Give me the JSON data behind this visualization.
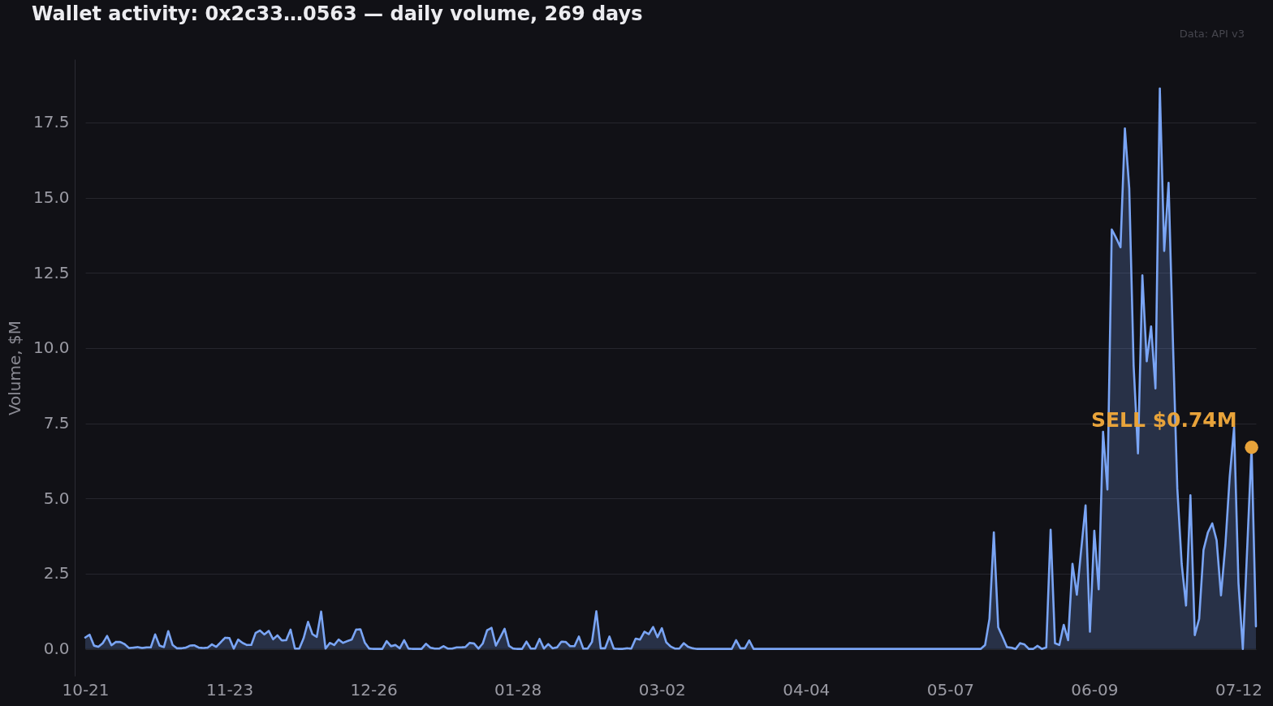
{
  "chart_data": {
    "type": "area",
    "title": "Wallet activity: 0x2c33…0563 — daily volume, 269 days",
    "ylabel": "Volume, $M",
    "annotations": [
      "Data: API v3",
      "SELL $0.74M"
    ],
    "categories": [
      "10-21",
      null,
      null,
      null,
      null,
      null,
      null,
      null,
      null,
      null,
      null,
      null,
      null,
      null,
      null,
      null,
      null,
      null,
      null,
      null,
      null,
      null,
      null,
      null,
      null,
      null,
      null,
      null,
      null,
      null,
      null,
      null,
      null,
      "11-23",
      null,
      null,
      null,
      null,
      null,
      null,
      null,
      null,
      null,
      null,
      null,
      null,
      null,
      null,
      null,
      null,
      null,
      null,
      null,
      null,
      null,
      null,
      null,
      null,
      null,
      null,
      null,
      null,
      null,
      null,
      null,
      null,
      "12-26",
      null,
      null,
      null,
      null,
      null,
      null,
      null,
      null,
      null,
      null,
      null,
      null,
      null,
      null,
      null,
      null,
      null,
      null,
      null,
      null,
      null,
      null,
      null,
      null,
      null,
      null,
      null,
      null,
      null,
      null,
      null,
      null,
      "01-28",
      null,
      null,
      null,
      null,
      null,
      null,
      null,
      null,
      null,
      null,
      null,
      null,
      null,
      null,
      null,
      null,
      null,
      null,
      null,
      null,
      null,
      null,
      null,
      null,
      null,
      null,
      null,
      null,
      null,
      null,
      null,
      null,
      "03-02",
      null,
      null,
      null,
      null,
      null,
      null,
      null,
      null,
      null,
      null,
      null,
      null,
      null,
      null,
      null,
      null,
      null,
      null,
      null,
      null,
      null,
      null,
      null,
      null,
      null,
      null,
      null,
      null,
      null,
      null,
      null,
      null,
      "04-04",
      null,
      null,
      null,
      null,
      null,
      null,
      null,
      null,
      null,
      null,
      null,
      null,
      null,
      null,
      null,
      null,
      null,
      null,
      null,
      null,
      null,
      null,
      null,
      null,
      null,
      null,
      null,
      null,
      null,
      null,
      null,
      null,
      "05-07",
      null,
      null,
      null,
      null,
      null,
      null,
      null,
      null,
      null,
      null,
      null,
      null,
      null,
      null,
      null,
      null,
      null,
      null,
      null,
      null,
      null,
      null,
      null,
      null,
      null,
      null,
      null,
      null,
      null,
      null,
      null,
      null,
      "06-09",
      null,
      null,
      null,
      null,
      null,
      null,
      null,
      null,
      null,
      null,
      null,
      null,
      null,
      null,
      null,
      null,
      null,
      null,
      null,
      null,
      null,
      null,
      null,
      null,
      null,
      null,
      null,
      null,
      null,
      null,
      null,
      null,
      "07-12",
      null,
      null,
      null,
      null
    ],
    "ylim": [
      -0.9,
      19.6
    ],
    "yticks": [
      {
        "value": 0,
        "label": "0.0"
      },
      2.5,
      {
        "value": 5,
        "label": "5.0"
      },
      7.5,
      {
        "value": 10,
        "label": "10.0"
      },
      12.5,
      {
        "value": 15,
        "label": "15.0"
      },
      17.5
    ],
    "grid": "y",
    "series": [
      {
        "color": "#7aa5f5",
        "values": [
          0.38,
          0.47,
          0.11,
          0.07,
          0.19,
          0.43,
          0.12,
          0.23,
          0.23,
          0.16,
          0.03,
          0.04,
          0.06,
          0.03,
          0.05,
          0.05,
          0.48,
          0.11,
          0.06,
          0.59,
          0.13,
          0.02,
          0.02,
          0.04,
          0.11,
          0.12,
          0.04,
          0.03,
          0.04,
          0.15,
          0.07,
          0.22,
          0.37,
          0.36,
          0.01,
          0.31,
          0.2,
          0.13,
          0.13,
          0.53,
          0.61,
          0.48,
          0.6,
          0.32,
          0.45,
          0.28,
          0.29,
          0.64,
          0.01,
          0.01,
          0.36,
          0.9,
          0.49,
          0.4,
          1.24,
          0.01,
          0.2,
          0.13,
          0.31,
          0.2,
          0.26,
          0.31,
          0.64,
          0.65,
          0.21,
          0.01,
          0,
          0,
          0,
          0.26,
          0.09,
          0.13,
          0.02,
          0.29,
          0.01,
          0,
          0,
          0,
          0.17,
          0.04,
          0.01,
          0.01,
          0.09,
          0.01,
          0.01,
          0.05,
          0.05,
          0.06,
          0.2,
          0.18,
          0.01,
          0.18,
          0.62,
          0.7,
          0.11,
          0.38,
          0.67,
          0.1,
          0.01,
          0,
          0,
          0.24,
          0.01,
          0.01,
          0.33,
          0.01,
          0.16,
          0.02,
          0.05,
          0.24,
          0.23,
          0.09,
          0.09,
          0.41,
          0.01,
          0.01,
          0.23,
          1.25,
          0.02,
          0.02,
          0.41,
          0.01,
          0,
          0,
          0.02,
          0.01,
          0.34,
          0.31,
          0.57,
          0.49,
          0.73,
          0.39,
          0.69,
          0.22,
          0.08,
          0.01,
          0.01,
          0.19,
          0.07,
          0.02,
          0,
          0,
          0,
          0,
          0,
          0,
          0,
          0,
          0,
          0.29,
          0.02,
          0.02,
          0.28,
          0,
          0,
          0,
          0,
          0,
          0,
          0,
          0,
          0,
          0,
          0,
          0,
          0,
          0,
          0,
          0,
          0,
          0,
          0,
          0,
          0,
          0,
          0,
          0,
          0,
          0,
          0,
          0,
          0,
          0,
          0,
          0,
          0,
          0,
          0,
          0,
          0,
          0,
          0,
          0,
          0,
          0,
          0,
          0,
          0,
          0,
          0,
          0,
          0,
          0,
          0,
          0,
          0,
          0.13,
          1.0,
          3.87,
          0.72,
          0.4,
          0.06,
          0.04,
          0,
          0.19,
          0.15,
          0,
          0,
          0.1,
          0,
          0.05,
          3.96,
          0.19,
          0.13,
          0.8,
          0.29,
          2.83,
          1.8,
          3.3,
          4.77,
          0.57,
          3.93,
          1.98,
          7.22,
          5.3,
          13.94,
          13.66,
          13.35,
          17.3,
          15.3,
          9.42,
          6.5,
          12.42,
          9.56,
          10.72,
          8.66,
          18.63,
          13.23,
          15.49,
          10.2,
          5.34,
          2.83,
          1.44,
          5.11,
          0.46,
          1.0,
          3.29,
          3.87,
          4.17,
          3.61,
          1.78,
          3.45,
          5.72,
          7.37,
          2.2,
          0,
          3.35,
          6.7,
          0.75
        ]
      },
      {
        "type": "scatter",
        "color": "#e8a33a",
        "marker": "circle",
        "values": [
          null,
          null,
          null,
          null,
          null,
          null,
          null,
          null,
          null,
          null,
          null,
          null,
          null,
          null,
          null,
          null,
          null,
          null,
          null,
          null,
          null,
          null,
          null,
          null,
          null,
          null,
          null,
          null,
          null,
          null,
          null,
          null,
          null,
          null,
          null,
          null,
          null,
          null,
          null,
          null,
          null,
          null,
          null,
          null,
          null,
          null,
          null,
          null,
          null,
          null,
          null,
          null,
          null,
          null,
          null,
          null,
          null,
          null,
          null,
          null,
          null,
          null,
          null,
          null,
          null,
          null,
          null,
          null,
          null,
          null,
          null,
          null,
          null,
          null,
          null,
          null,
          null,
          null,
          null,
          null,
          null,
          null,
          null,
          null,
          null,
          null,
          null,
          null,
          null,
          null,
          null,
          null,
          null,
          null,
          null,
          null,
          null,
          null,
          null,
          null,
          null,
          null,
          null,
          null,
          null,
          null,
          null,
          null,
          null,
          null,
          null,
          null,
          null,
          null,
          null,
          null,
          null,
          null,
          null,
          null,
          null,
          null,
          null,
          null,
          null,
          null,
          null,
          null,
          null,
          null,
          null,
          null,
          null,
          null,
          null,
          null,
          null,
          null,
          null,
          null,
          null,
          null,
          null,
          null,
          null,
          null,
          null,
          null,
          null,
          null,
          null,
          null,
          null,
          null,
          null,
          null,
          null,
          null,
          null,
          null,
          null,
          null,
          null,
          null,
          null,
          null,
          null,
          null,
          null,
          null,
          null,
          null,
          null,
          null,
          null,
          null,
          null,
          null,
          null,
          null,
          null,
          null,
          null,
          null,
          null,
          null,
          null,
          null,
          null,
          null,
          null,
          null,
          null,
          null,
          null,
          null,
          null,
          null,
          null,
          null,
          null,
          null,
          null,
          null,
          null,
          null,
          null,
          null,
          null,
          null,
          null,
          null,
          null,
          null,
          null,
          null,
          null,
          null,
          null,
          null,
          null,
          null,
          null,
          null,
          null,
          null,
          null,
          null,
          null,
          null,
          null,
          null,
          null,
          null,
          null,
          null,
          null,
          null,
          null,
          null,
          null,
          null,
          null,
          null,
          null,
          null,
          null,
          null,
          null,
          null,
          null,
          null,
          null,
          null,
          null,
          null,
          null,
          null,
          null,
          null,
          null,
          null,
          null,
          null,
          null,
          null,
          null,
          6.7,
          null
        ]
      }
    ]
  }
}
